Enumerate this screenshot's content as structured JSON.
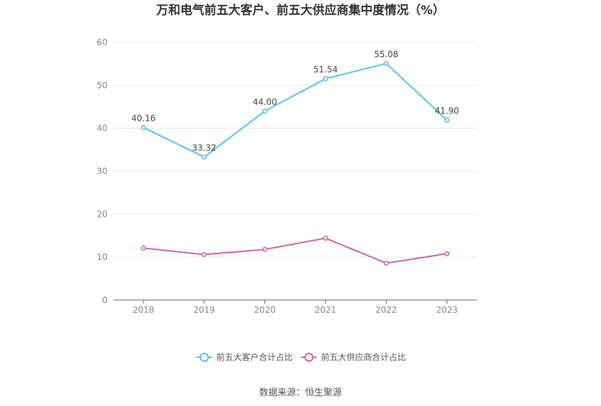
{
  "chart_data": {
    "type": "line",
    "title": "万和电气前五大客户、前五大供应商集中度情况（%）",
    "categories": [
      "2018",
      "2019",
      "2020",
      "2021",
      "2022",
      "2023"
    ],
    "ylim": [
      0,
      60
    ],
    "yticks": [
      "0",
      "10",
      "20",
      "30",
      "40",
      "50",
      "60"
    ],
    "grid": true,
    "legend_position": "bottom",
    "series": [
      {
        "name": "前五大客户合计占比",
        "color": "#5bc0ee",
        "values": [
          40.16,
          33.32,
          44.0,
          51.54,
          55.08,
          41.9
        ],
        "labels": [
          "40.16",
          "33.32",
          "44.00",
          "51.54",
          "55.08",
          "41.90"
        ]
      },
      {
        "name": "前五大供应商合计占比",
        "color": "#d562a8",
        "values": [
          12.1,
          10.6,
          11.8,
          14.4,
          8.6,
          10.8
        ]
      }
    ]
  },
  "footer": {
    "source": "数据来源：恒生聚源"
  }
}
